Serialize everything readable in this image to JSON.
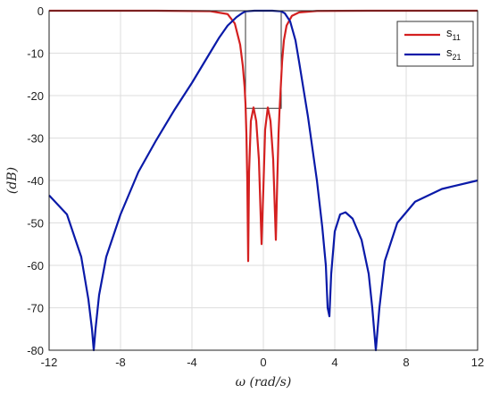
{
  "chart_data": {
    "type": "line",
    "title": "",
    "xlabel": "ω (rad/s)",
    "ylabel": "(dB)",
    "xlim": [
      -12,
      12
    ],
    "ylim": [
      -80,
      0
    ],
    "xticks": [
      -12,
      -8,
      -4,
      0,
      4,
      8,
      12
    ],
    "yticks": [
      0,
      -10,
      -20,
      -30,
      -40,
      -50,
      -60,
      -70,
      -80
    ],
    "xtick_labels": [
      "-12",
      "-8",
      "-4",
      "0",
      "4",
      "8",
      "12"
    ],
    "ytick_labels": [
      "0",
      "-10",
      "-20",
      "-30",
      "-40",
      "-50",
      "-60",
      "-70",
      "-80"
    ],
    "grid": true,
    "legend_position": "top-right",
    "series": [
      {
        "name": "s11",
        "legend_base": "s",
        "legend_sub": "11",
        "color": "#d42020",
        "x": [
          -12,
          -6,
          -3,
          -2,
          -1.6,
          -1.3,
          -1.15,
          -1.05,
          -1.0,
          -0.95,
          -0.9,
          -0.85,
          -0.8,
          -0.7,
          -0.55,
          -0.4,
          -0.25,
          -0.1,
          0.0,
          0.1,
          0.25,
          0.4,
          0.55,
          0.7,
          0.78,
          0.85,
          0.9,
          0.95,
          1.0,
          1.05,
          1.15,
          1.3,
          1.6,
          2.0,
          3.0,
          6.0,
          12.0
        ],
        "y": [
          0,
          0,
          -0.1,
          -0.8,
          -3,
          -8,
          -13,
          -18,
          -22,
          -29,
          -40,
          -59,
          -38,
          -26,
          -22.8,
          -26,
          -35,
          -55,
          -42,
          -28,
          -22.8,
          -26,
          -35,
          -54,
          -40,
          -29,
          -24,
          -20,
          -16,
          -12,
          -7,
          -3.5,
          -1.2,
          -0.4,
          -0.05,
          0,
          0
        ]
      },
      {
        "name": "s21",
        "legend_base": "s",
        "legend_sub": "21",
        "color": "#0a1aa8",
        "x": [
          -12,
          -11,
          -10.2,
          -9.8,
          -9.6,
          -9.5,
          -9.4,
          -9.2,
          -8.8,
          -8,
          -7,
          -6,
          -5,
          -4,
          -3,
          -2.5,
          -2,
          -1.5,
          -1.2,
          -1,
          -0.5,
          0,
          0.5,
          1,
          1.2,
          1.5,
          1.8,
          2,
          2.5,
          3,
          3.3,
          3.5,
          3.6,
          3.7,
          3.8,
          4.0,
          4.3,
          4.6,
          5.0,
          5.5,
          5.9,
          6.1,
          6.3,
          6.5,
          6.8,
          7.5,
          8.5,
          10,
          12
        ],
        "y": [
          -43.5,
          -48,
          -58,
          -68,
          -75,
          -80,
          -75,
          -67,
          -58,
          -48,
          -38,
          -30.5,
          -23.5,
          -17,
          -10,
          -6.5,
          -3.5,
          -1.5,
          -0.6,
          -0.15,
          0,
          0,
          0,
          -0.15,
          -0.6,
          -2.5,
          -7,
          -12,
          -25,
          -40,
          -51,
          -60,
          -70,
          -72,
          -62,
          -52,
          -48,
          -47.5,
          -49,
          -54,
          -62,
          -70,
          -80,
          -70,
          -59,
          -50,
          -45,
          -42,
          -40
        ]
      }
    ],
    "annotations": {
      "mask_box": {
        "x0": -1,
        "x1": 1,
        "y0": 0,
        "y1": -23
      }
    }
  }
}
